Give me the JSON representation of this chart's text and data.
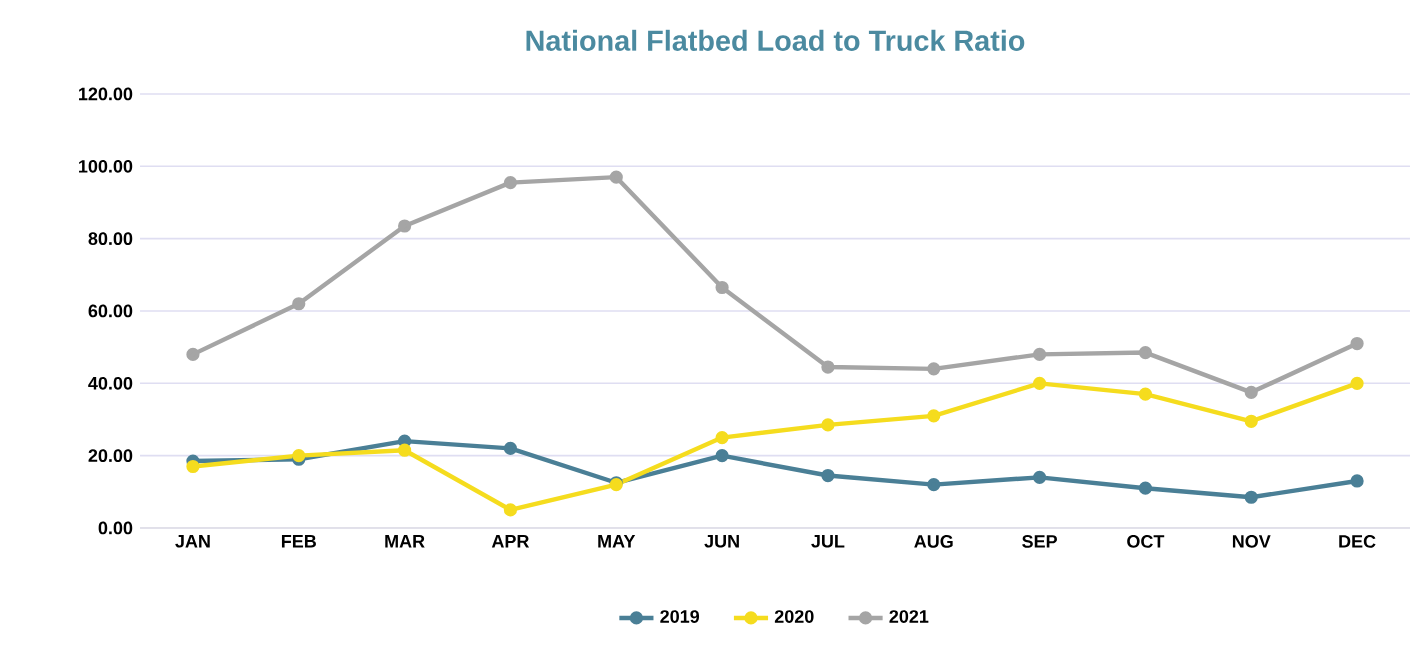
{
  "chart_data": {
    "type": "line",
    "title": "National Flatbed Load to Truck Ratio",
    "categories": [
      "JAN",
      "FEB",
      "MAR",
      "APR",
      "MAY",
      "JUN",
      "JUL",
      "AUG",
      "SEP",
      "OCT",
      "NOV",
      "DEC"
    ],
    "series": [
      {
        "name": "2019",
        "color": "#4a7f96",
        "values": [
          18.5,
          19,
          24,
          22,
          12.5,
          20,
          14.5,
          12,
          14,
          11,
          8.5,
          13
        ]
      },
      {
        "name": "2020",
        "color": "#f5dc1e",
        "values": [
          17,
          20,
          21.5,
          5,
          12,
          25,
          28.5,
          31,
          40,
          37,
          29.5,
          40
        ]
      },
      {
        "name": "2021",
        "color": "#a5a5a5",
        "values": [
          48,
          62,
          83.5,
          95.5,
          97,
          66.5,
          44.5,
          44,
          48,
          48.5,
          37.5,
          51
        ]
      }
    ],
    "ylim": [
      0,
      120
    ],
    "yticks": [
      {
        "value": 0,
        "label": "0.00"
      },
      {
        "value": 20,
        "label": "20.00"
      },
      {
        "value": 40,
        "label": "40.00"
      },
      {
        "value": 60,
        "label": "60.00"
      },
      {
        "value": 80,
        "label": "80.00"
      },
      {
        "value": 100,
        "label": "100.00"
      },
      {
        "value": 120,
        "label": "120.00"
      }
    ],
    "grid": "y",
    "legend": "bottom",
    "marker": "circle",
    "line_style": "solid"
  }
}
